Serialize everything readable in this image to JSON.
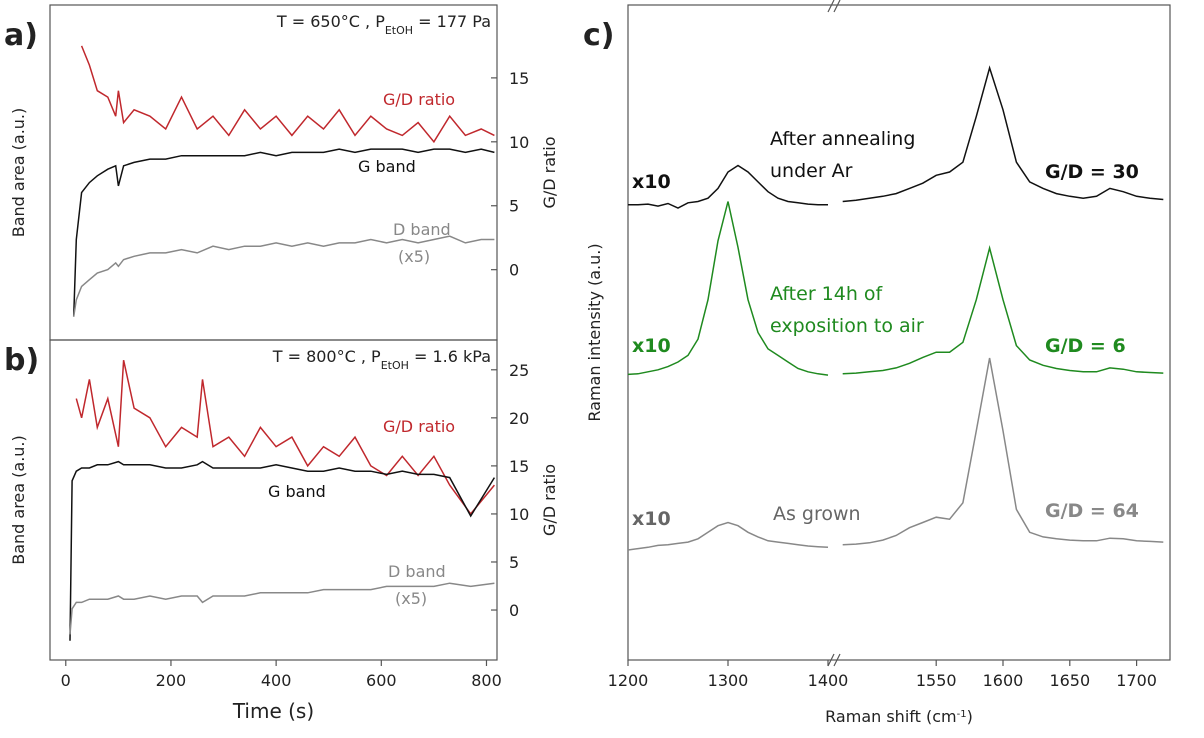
{
  "chart_data": [
    {
      "type": "line",
      "panel_label": "a)",
      "title_parts": [
        "T = 650°C , P",
        "EtOH",
        " = 177 Pa"
      ],
      "ylabel": "Band area (a.u.)",
      "y2label": "G/D ratio",
      "x": [
        15,
        20,
        30,
        45,
        60,
        80,
        95,
        100,
        110,
        130,
        160,
        190,
        220,
        250,
        280,
        310,
        340,
        370,
        400,
        430,
        460,
        490,
        520,
        550,
        580,
        610,
        640,
        670,
        700,
        730,
        760,
        790,
        815
      ],
      "xlim": [
        -30,
        820
      ],
      "ylim": [
        0,
        100
      ],
      "y2lim": [
        -5.5,
        20.7
      ],
      "y2ticks": [
        0,
        5,
        10,
        15
      ],
      "series": [
        {
          "name": "G/D ratio",
          "color": "#c0282d",
          "axis": "y2",
          "values": [
            null,
            null,
            17.5,
            16,
            14,
            13.5,
            12,
            14,
            11.5,
            12.5,
            12,
            11,
            13.5,
            11,
            12,
            10.5,
            12.5,
            11,
            12,
            10.5,
            12,
            11,
            12.5,
            10.5,
            12,
            11,
            10.5,
            11.5,
            10,
            12,
            10.5,
            11,
            10.5
          ]
        },
        {
          "name": "G band",
          "color": "#111111",
          "axis": "y",
          "values": [
            7,
            30,
            44,
            47,
            49,
            51,
            52,
            46,
            52,
            53,
            54,
            54,
            55,
            55,
            55,
            55,
            55,
            56,
            55,
            56,
            56,
            56,
            57,
            56,
            57,
            57,
            57,
            56,
            57,
            57,
            56,
            57,
            56
          ]
        },
        {
          "name": "D band",
          "color": "#888888",
          "axis": "y",
          "values": [
            7,
            12,
            16,
            18,
            20,
            21,
            23,
            22,
            24,
            25,
            26,
            26,
            27,
            26,
            28,
            27,
            28,
            28,
            29,
            28,
            29,
            28,
            29,
            29,
            30,
            29,
            30,
            29,
            30,
            31,
            29,
            30,
            30
          ]
        }
      ],
      "annotations": [
        {
          "text": "G/D ratio",
          "color": "#c0282d"
        },
        {
          "text": "G band",
          "color": "#111111"
        },
        {
          "text": "D band",
          "color": "#888888"
        },
        {
          "text": "(x5)",
          "color": "#888888"
        }
      ]
    },
    {
      "type": "line",
      "panel_label": "b)",
      "title_parts": [
        "T = 800°C , P",
        "EtOH",
        " = 1.6 kPa"
      ],
      "ylabel": "Band area (a.u.)",
      "y2label": "G/D ratio",
      "xlabel": "Time (s)",
      "x": [
        8,
        12,
        20,
        30,
        45,
        60,
        80,
        100,
        110,
        130,
        160,
        190,
        220,
        250,
        260,
        280,
        310,
        340,
        370,
        400,
        430,
        460,
        490,
        520,
        550,
        580,
        610,
        640,
        670,
        700,
        730,
        770,
        815
      ],
      "xlim": [
        -30,
        820
      ],
      "xticks": [
        0,
        200,
        400,
        600,
        800
      ],
      "ylim": [
        0,
        100
      ],
      "y2lim": [
        -5.2,
        28.1
      ],
      "y2ticks": [
        0,
        5,
        10,
        15,
        20,
        25
      ],
      "series": [
        {
          "name": "G/D ratio",
          "color": "#c0282d",
          "axis": "y2",
          "values": [
            null,
            null,
            22,
            20,
            24,
            19,
            22,
            17,
            26,
            21,
            20,
            17,
            19,
            18,
            24,
            17,
            18,
            16,
            19,
            17,
            18,
            15,
            17,
            16,
            18,
            15,
            14,
            16,
            14,
            16,
            13,
            10,
            13
          ]
        },
        {
          "name": "G band",
          "color": "#111111",
          "axis": "y",
          "values": [
            6,
            56,
            59,
            60,
            60,
            61,
            61,
            62,
            61,
            61,
            61,
            60,
            60,
            61,
            62,
            60,
            60,
            60,
            60,
            61,
            60,
            59,
            59,
            60,
            59,
            59,
            58,
            59,
            58,
            58,
            57,
            45,
            57
          ]
        },
        {
          "name": "D band",
          "color": "#888888",
          "axis": "y",
          "values": [
            8,
            16,
            18,
            18,
            19,
            19,
            19,
            20,
            19,
            19,
            20,
            19,
            20,
            20,
            18,
            20,
            20,
            20,
            21,
            21,
            21,
            21,
            22,
            22,
            22,
            22,
            23,
            23,
            23,
            23,
            24,
            23,
            24
          ]
        }
      ],
      "annotations": [
        {
          "text": "G/D ratio",
          "color": "#c0282d"
        },
        {
          "text": "G band",
          "color": "#111111"
        },
        {
          "text": "D band",
          "color": "#888888"
        },
        {
          "text": "(x5)",
          "color": "#888888"
        }
      ]
    },
    {
      "type": "spectra",
      "panel_label": "c)",
      "ylabel": "Raman intensity (a.u.)",
      "xlabel_parts": [
        "Raman shift (cm",
        "-1",
        ")"
      ],
      "x": [
        [
          1200,
          1210,
          1220,
          1230,
          1240,
          1250,
          1260,
          1270,
          1280,
          1290,
          1300,
          1310,
          1320,
          1330,
          1340,
          1350,
          1360,
          1370,
          1380,
          1390,
          1400
        ],
        [
          1480,
          1490,
          1500,
          1510,
          1520,
          1530,
          1540,
          1550,
          1560,
          1570,
          1580,
          1590,
          1600,
          1610,
          1620,
          1630,
          1640,
          1650,
          1660,
          1670,
          1680,
          1690,
          1700,
          1710,
          1720
        ]
      ],
      "xlim": [
        [
          1200,
          1405
        ],
        [
          1478,
          1725
        ]
      ],
      "xticks": [
        1200,
        1300,
        1400,
        1550,
        1600,
        1650,
        1700
      ],
      "ylim": [
        0,
        100
      ],
      "series": [
        {
          "name": "After annealing under Ar",
          "color": "#111111",
          "values": [
            [
              69.5,
              69.5,
              69.6,
              69.3,
              69.7,
              69,
              69.8,
              70,
              70.5,
              72,
              74.5,
              75.5,
              74.5,
              73,
              71.5,
              70.5,
              70,
              69.8,
              69.6,
              69.5,
              69.5
            ],
            [
              70,
              70.2,
              70.5,
              70.8,
              71.2,
              72,
              72.8,
              74,
              74.5,
              76,
              83,
              90.4,
              84,
              76,
              73,
              72,
              71.2,
              70.8,
              70.5,
              70.8,
              72,
              71.5,
              70.8,
              70.5,
              70.3
            ]
          ]
        },
        {
          "name": "After 14h of exposition to air",
          "color": "#1f8a1f",
          "values": [
            [
              43.6,
              43.7,
              44,
              44.3,
              44.8,
              45.5,
              46.5,
              49,
              55,
              64,
              70,
              63,
              55,
              50,
              47.5,
              46.5,
              45.5,
              44.5,
              44,
              43.7,
              43.5
            ],
            [
              43.7,
              43.8,
              44,
              44.2,
              44.6,
              45.3,
              46.2,
              47,
              47,
              48.5,
              55,
              62.9,
              55,
              48,
              45.8,
              45,
              44.5,
              44.2,
              44,
              44,
              44.6,
              44.4,
              44,
              43.9,
              43.8
            ]
          ]
        },
        {
          "name": "As grown",
          "color": "#888888",
          "values": [
            [
              16.8,
              17,
              17.2,
              17.5,
              17.6,
              17.8,
              18,
              18.5,
              19.5,
              20.5,
              21,
              20.5,
              19.5,
              18.8,
              18.2,
              18,
              17.8,
              17.6,
              17.4,
              17.3,
              17.2
            ],
            [
              17.6,
              17.7,
              17.9,
              18.3,
              19,
              20.2,
              21,
              21.8,
              21.5,
              24,
              35,
              46.1,
              35,
              23,
              19.5,
              18.8,
              18.5,
              18.3,
              18.2,
              18.2,
              18.6,
              18.5,
              18.2,
              18.1,
              18
            ]
          ]
        }
      ],
      "annotations": [
        {
          "text": "x10",
          "color": "#111111",
          "bold": true
        },
        {
          "text": "After annealing",
          "color": "#111111"
        },
        {
          "text": "under Ar",
          "color": "#111111"
        },
        {
          "text": "G/D = 30",
          "color": "#111111",
          "bold": true
        },
        {
          "text": "x10",
          "color": "#1f8a1f",
          "bold": true
        },
        {
          "text": "After 14h of",
          "color": "#1f8a1f"
        },
        {
          "text": "exposition to air",
          "color": "#1f8a1f"
        },
        {
          "text": "G/D = 6",
          "color": "#1f8a1f",
          "bold": true
        },
        {
          "text": "x10",
          "color": "#666666",
          "bold": true
        },
        {
          "text": "As grown",
          "color": "#666666"
        },
        {
          "text": "G/D = 64",
          "color": "#888888",
          "bold": true
        }
      ]
    }
  ]
}
